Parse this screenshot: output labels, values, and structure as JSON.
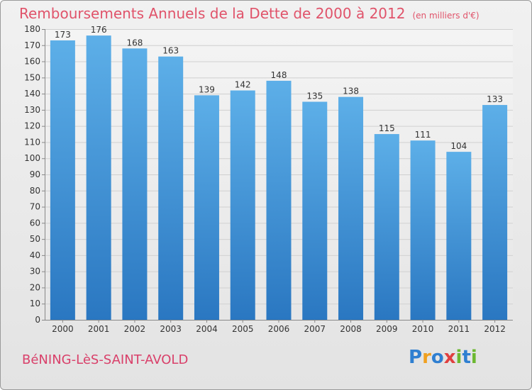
{
  "chart_title": "Remboursements Annuels de la Dette de 2000 à 2012",
  "chart_unit": "(en milliers d'€)",
  "commune": "BéNING-LèS-SAINT-AVOLD",
  "logo": {
    "text": "Proxiti",
    "letters": [
      "P",
      "r",
      "o",
      "x",
      "i",
      "t",
      "i"
    ],
    "colors": [
      "#2f7fd1",
      "#f0a020",
      "#2f7fd1",
      "#e04040",
      "#6cb830",
      "#2f7fd1",
      "#6cb830"
    ]
  },
  "colors": {
    "title": "#e0536a",
    "bar_top": "#5dafe8",
    "bar_bottom": "#2a77c1"
  },
  "chart_data": {
    "type": "bar",
    "title": "Remboursements Annuels de la Dette de 2000 à 2012",
    "subtitle": "(en milliers d'€)",
    "xlabel": "",
    "ylabel": "",
    "categories": [
      "2000",
      "2001",
      "2002",
      "2003",
      "2004",
      "2005",
      "2006",
      "2007",
      "2008",
      "2009",
      "2010",
      "2011",
      "2012"
    ],
    "values": [
      173,
      176,
      168,
      163,
      139,
      142,
      148,
      135,
      138,
      115,
      111,
      104,
      133
    ],
    "ylim": [
      0,
      180
    ],
    "yticks": [
      0,
      10,
      20,
      30,
      40,
      50,
      60,
      70,
      80,
      90,
      100,
      110,
      120,
      130,
      140,
      150,
      160,
      170,
      180
    ],
    "grid": true,
    "legend": "none"
  }
}
